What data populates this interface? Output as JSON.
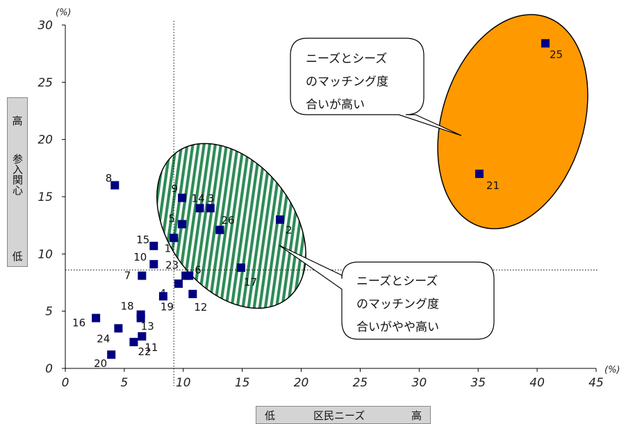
{
  "chart_data": {
    "type": "scatter",
    "x_unit": "(%)",
    "y_unit": "(%)",
    "xlim": [
      0,
      45
    ],
    "ylim": [
      0,
      30
    ],
    "x_ticks": [
      "0",
      "5",
      "10",
      "15",
      "20",
      "25",
      "30",
      "35",
      "40",
      "45"
    ],
    "y_ticks": [
      "0",
      "5",
      "10",
      "15",
      "20",
      "25",
      "30"
    ],
    "y_axis_label": {
      "high": "高",
      "title": "参入関心",
      "low": "低"
    },
    "x_axis_label": {
      "low": "低",
      "title": "区民ニーズ",
      "high": "高"
    },
    "reference_lines": {
      "x": 9.2,
      "y": 8.6
    },
    "points": [
      {
        "label": "1",
        "x": 9.2,
        "y": 11.4
      },
      {
        "label": "2",
        "x": 18.2,
        "y": 13.0
      },
      {
        "label": "3",
        "x": 12.3,
        "y": 14.0
      },
      {
        "label": "4",
        "x": 9.6,
        "y": 7.4
      },
      {
        "label": "5",
        "x": 9.9,
        "y": 12.6
      },
      {
        "label": "6",
        "x": 10.5,
        "y": 8.1
      },
      {
        "label": "7",
        "x": 6.5,
        "y": 8.1
      },
      {
        "label": "8",
        "x": 4.2,
        "y": 16.0
      },
      {
        "label": "9",
        "x": 9.9,
        "y": 14.9
      },
      {
        "label": "10",
        "x": 7.5,
        "y": 9.1
      },
      {
        "label": "11",
        "x": 6.5,
        "y": 2.8
      },
      {
        "label": "12",
        "x": 10.8,
        "y": 6.5
      },
      {
        "label": "13",
        "x": 6.4,
        "y": 4.4
      },
      {
        "label": "14",
        "x": 11.4,
        "y": 14.0
      },
      {
        "label": "15",
        "x": 7.5,
        "y": 10.7
      },
      {
        "label": "16",
        "x": 2.6,
        "y": 4.4
      },
      {
        "label": "17",
        "x": 14.9,
        "y": 8.8
      },
      {
        "label": "18",
        "x": 6.4,
        "y": 4.7
      },
      {
        "label": "19",
        "x": 8.3,
        "y": 6.3
      },
      {
        "label": "20",
        "x": 3.9,
        "y": 1.2
      },
      {
        "label": "21",
        "x": 35.1,
        "y": 17.0
      },
      {
        "label": "22",
        "x": 5.8,
        "y": 2.3
      },
      {
        "label": "23",
        "x": 10.2,
        "y": 8.1
      },
      {
        "label": "24",
        "x": 4.5,
        "y": 3.5
      },
      {
        "label": "25",
        "x": 40.7,
        "y": 28.4
      },
      {
        "label": "26",
        "x": 13.1,
        "y": 12.1
      }
    ],
    "marker_color": "#000080",
    "annotations": [
      {
        "lines": [
          "ニーズとシーズ",
          "のマッチング度",
          "合いが高い"
        ],
        "fill": "#FF9900"
      },
      {
        "lines": [
          "ニーズとシーズ",
          "のマッチング度",
          "合いがやや高い"
        ],
        "fill": "#2E8B57"
      }
    ]
  }
}
